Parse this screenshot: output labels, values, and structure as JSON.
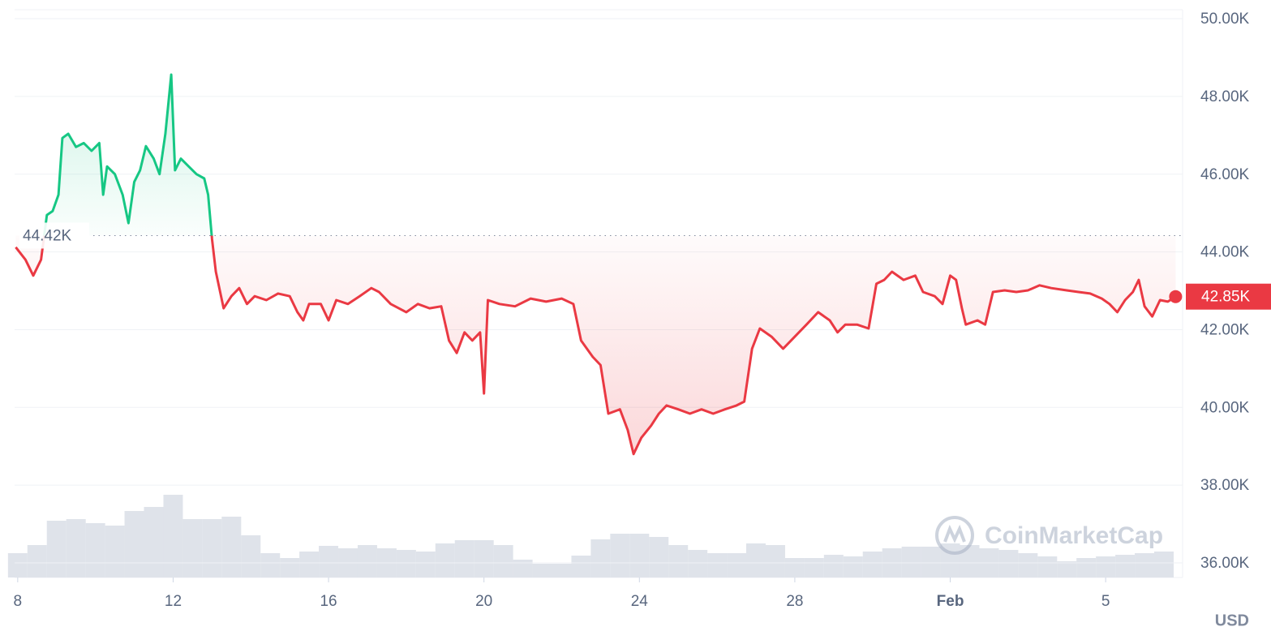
{
  "chart_data": {
    "type": "line",
    "unit": "USD",
    "watermark": "CoinMarketCap",
    "up_color": "#16c784",
    "down_color": "#ea3943",
    "grid": true,
    "xlim": [
      7.92,
      37.98
    ],
    "ylim": [
      35625,
      50230
    ],
    "yticks": [
      {
        "value": 36000,
        "label": "36.00K"
      },
      {
        "value": 38000,
        "label": "38.00K"
      },
      {
        "value": 40000,
        "label": "40.00K"
      },
      {
        "value": 42000,
        "label": "42.00K"
      },
      {
        "value": 44000,
        "label": "44.00K"
      },
      {
        "value": 46000,
        "label": "46.00K"
      },
      {
        "value": 48000,
        "label": "48.00K"
      },
      {
        "value": 50000,
        "label": "50.00K"
      }
    ],
    "xticks": [
      8,
      12,
      16,
      20,
      24,
      28,
      {
        "value": 32,
        "label": "Feb"
      },
      {
        "value": 36,
        "label": "5"
      }
    ],
    "reference": {
      "value": 44420,
      "label": "44.42K"
    },
    "last": {
      "value": 42850,
      "label": "42.85K"
    },
    "x": [
      7.95,
      8.2,
      8.4,
      8.6,
      8.75,
      8.9,
      9.05,
      9.15,
      9.3,
      9.5,
      9.7,
      9.9,
      10.1,
      10.2,
      10.3,
      10.5,
      10.7,
      10.85,
      11.0,
      11.15,
      11.3,
      11.5,
      11.65,
      11.8,
      11.95,
      12.05,
      12.2,
      12.4,
      12.6,
      12.8,
      12.9,
      13.0,
      13.1,
      13.3,
      13.5,
      13.7,
      13.9,
      14.1,
      14.4,
      14.7,
      15.0,
      15.2,
      15.35,
      15.5,
      15.8,
      16.0,
      16.2,
      16.5,
      16.8,
      17.1,
      17.3,
      17.6,
      18.0,
      18.3,
      18.6,
      18.9,
      19.1,
      19.3,
      19.5,
      19.7,
      19.9,
      20.0,
      20.1,
      20.4,
      20.8,
      21.2,
      21.6,
      22.0,
      22.3,
      22.5,
      22.8,
      23.0,
      23.2,
      23.5,
      23.7,
      23.85,
      24.05,
      24.3,
      24.5,
      24.7,
      25.0,
      25.3,
      25.6,
      25.9,
      26.2,
      26.5,
      26.7,
      26.9,
      27.1,
      27.4,
      27.7,
      28.0,
      28.3,
      28.6,
      28.9,
      29.1,
      29.3,
      29.6,
      29.9,
      30.1,
      30.3,
      30.5,
      30.8,
      31.1,
      31.3,
      31.6,
      31.8,
      32.0,
      32.15,
      32.3,
      32.4,
      32.7,
      32.9,
      33.1,
      33.4,
      33.7,
      34.0,
      34.3,
      34.6,
      35.0,
      35.3,
      35.6,
      35.9,
      36.1,
      36.3,
      36.5,
      36.7,
      36.85,
      37.0,
      37.2,
      37.4,
      37.6,
      37.8
    ],
    "values": [
      44120,
      43800,
      43390,
      43800,
      44950,
      45050,
      45470,
      46930,
      47040,
      46700,
      46800,
      46600,
      46800,
      45470,
      46200,
      46000,
      45470,
      44740,
      45800,
      46100,
      46720,
      46400,
      46000,
      47040,
      48560,
      46100,
      46400,
      46200,
      46000,
      45890,
      45470,
      44330,
      43490,
      42550,
      42860,
      43070,
      42660,
      42860,
      42760,
      42930,
      42860,
      42450,
      42240,
      42660,
      42660,
      42240,
      42760,
      42660,
      42860,
      43070,
      42970,
      42660,
      42450,
      42660,
      42550,
      42600,
      41720,
      41400,
      41930,
      41720,
      41930,
      40360,
      42760,
      42660,
      42600,
      42800,
      42720,
      42800,
      42660,
      41720,
      41300,
      41090,
      39840,
      39950,
      39420,
      38800,
      39220,
      39530,
      39840,
      40050,
      39950,
      39840,
      39950,
      39840,
      39950,
      40050,
      40150,
      41510,
      42030,
      41820,
      41510,
      41820,
      42130,
      42450,
      42240,
      41930,
      42130,
      42130,
      42030,
      43180,
      43280,
      43490,
      43280,
      43390,
      42970,
      42860,
      42660,
      43390,
      43280,
      42550,
      42130,
      42240,
      42130,
      42970,
      43010,
      42970,
      43010,
      43140,
      43070,
      43010,
      42970,
      42930,
      42800,
      42660,
      42450,
      42760,
      42970,
      43280,
      42600,
      42340,
      42760,
      42720,
      42850
    ],
    "volume": {
      "color": "#dfe3ea",
      "x": [
        8,
        8.5,
        9,
        9.5,
        10,
        10.5,
        11,
        11.5,
        12,
        12.5,
        13,
        13.5,
        14,
        14.5,
        15,
        15.5,
        16,
        16.5,
        17,
        17.5,
        18,
        18.5,
        19,
        19.5,
        20,
        20.5,
        21,
        21.5,
        22,
        22.5,
        23,
        23.5,
        24,
        24.5,
        25,
        25.5,
        26,
        26.5,
        27,
        27.5,
        28,
        28.5,
        29,
        29.5,
        30,
        30.5,
        31,
        31.5,
        32,
        32.5,
        33,
        33.5,
        34,
        34.5,
        35,
        35.5,
        36,
        36.5,
        37,
        37.5
      ],
      "values": [
        30,
        40,
        70,
        72,
        67,
        64,
        82,
        87,
        102,
        72,
        72,
        75,
        52,
        30,
        24,
        32,
        39,
        36,
        40,
        36,
        34,
        32,
        42,
        46,
        46,
        40,
        22,
        17,
        17,
        27,
        47,
        54,
        54,
        50,
        40,
        34,
        30,
        30,
        42,
        40,
        24,
        24,
        28,
        26,
        32,
        36,
        38,
        38,
        42,
        40,
        36,
        34,
        30,
        26,
        20,
        24,
        26,
        28,
        30,
        32
      ]
    }
  }
}
